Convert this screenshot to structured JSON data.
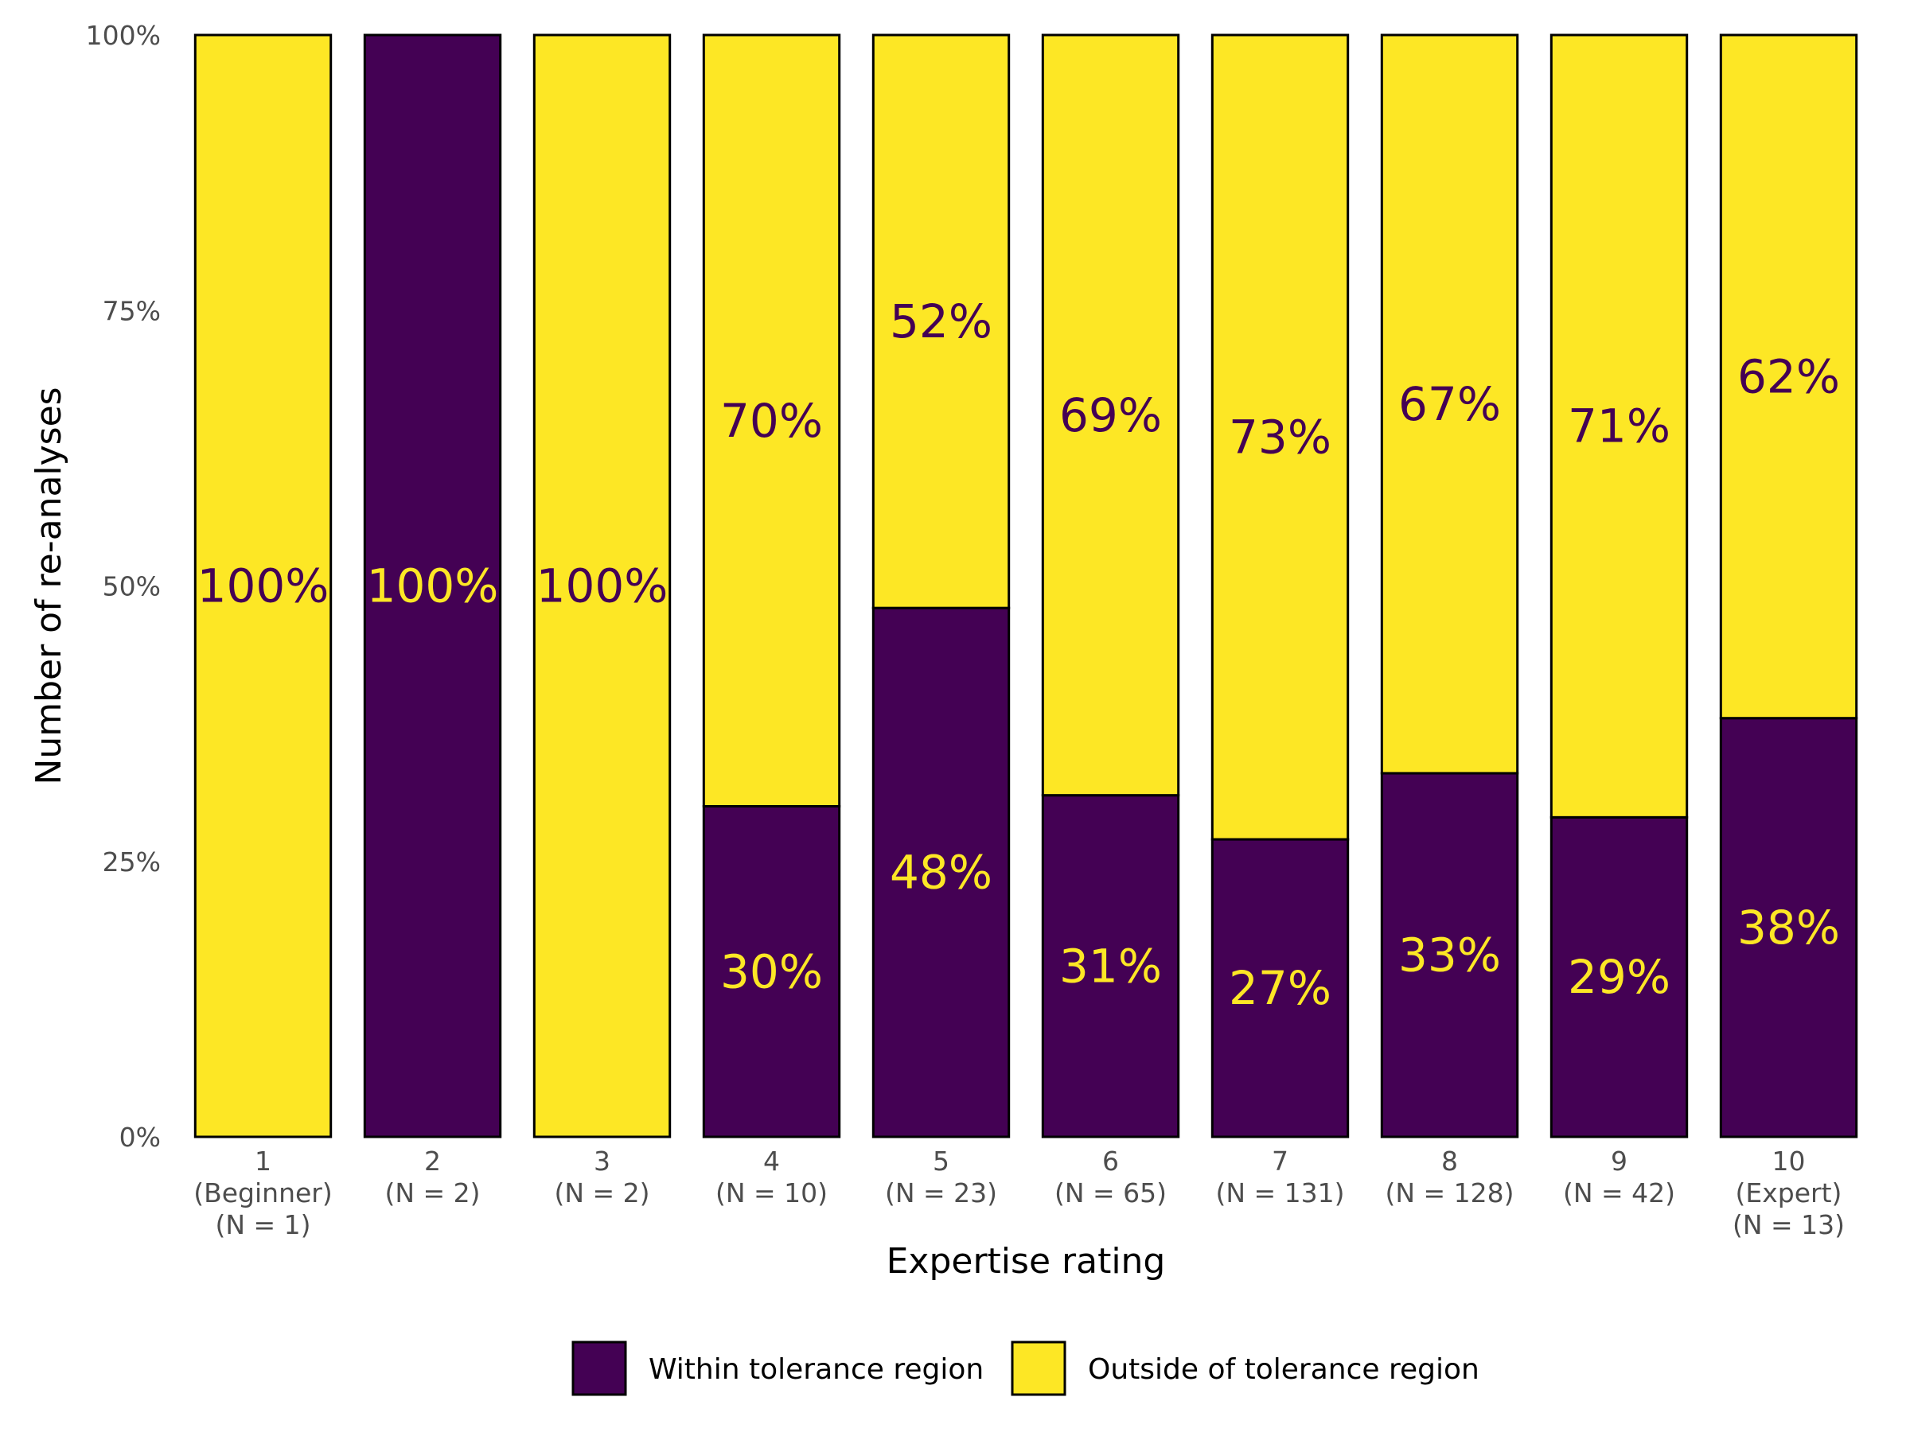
{
  "chart_data": {
    "type": "bar",
    "stacked": true,
    "normalized": true,
    "xlabel": "Expertise rating",
    "ylabel": "Number of re-analyses",
    "ylim": [
      0,
      100
    ],
    "yticks": [
      "0%",
      "25%",
      "50%",
      "75%",
      "100%"
    ],
    "categories": [
      [
        "1",
        "(Beginner)",
        "(N = 1)"
      ],
      [
        "2",
        "(N = 2)"
      ],
      [
        "3",
        "(N = 2)"
      ],
      [
        "4",
        "(N = 10)"
      ],
      [
        "5",
        "(N = 23)"
      ],
      [
        "6",
        "(N = 65)"
      ],
      [
        "7",
        "(N = 131)"
      ],
      [
        "8",
        "(N = 128)"
      ],
      [
        "9",
        "(N = 42)"
      ],
      [
        "10",
        "(Expert)",
        "(N = 13)"
      ]
    ],
    "series": [
      {
        "name": "Within tolerance region",
        "color": "#440154",
        "label_color": "#FDE725",
        "values": [
          0,
          100,
          0,
          30,
          48,
          31,
          27,
          33,
          29,
          38
        ],
        "labels": [
          "",
          "100%",
          "",
          "30%",
          "48%",
          "31%",
          "27%",
          "33%",
          "29%",
          "38%"
        ]
      },
      {
        "name": "Outside of tolerance region",
        "color": "#FDE725",
        "label_color": "#440154",
        "values": [
          100,
          0,
          100,
          70,
          52,
          69,
          73,
          67,
          71,
          62
        ],
        "labels": [
          "100%",
          "",
          "100%",
          "70%",
          "52%",
          "69%",
          "73%",
          "67%",
          "71%",
          "62%"
        ]
      }
    ],
    "legend_position": "bottom",
    "grid": false
  }
}
